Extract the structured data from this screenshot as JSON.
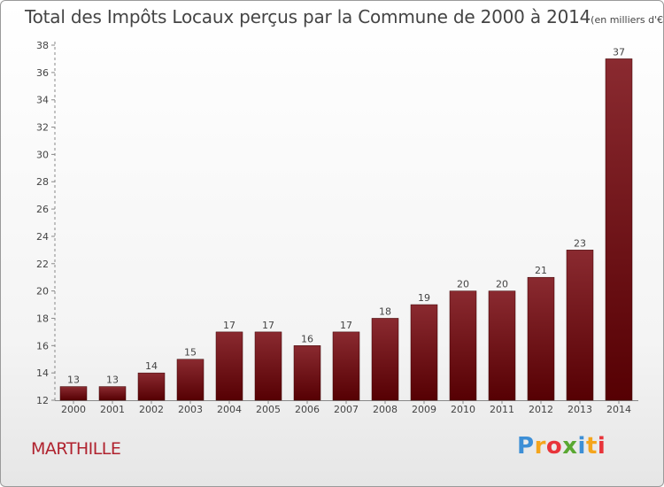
{
  "chart_data": {
    "type": "bar",
    "title": "Total des Impôts Locaux perçus par la Commune de 2000 à 2014",
    "unit_label": "(en milliers d'€)",
    "categories": [
      "2000",
      "2001",
      "2002",
      "2003",
      "2004",
      "2005",
      "2006",
      "2007",
      "2008",
      "2009",
      "2010",
      "2011",
      "2012",
      "2013",
      "2014"
    ],
    "values": [
      13,
      13,
      14,
      15,
      17,
      17,
      16,
      17,
      18,
      19,
      20,
      20,
      21,
      23,
      37
    ],
    "ylim": [
      12,
      38
    ],
    "yticks": [
      12,
      14,
      16,
      18,
      20,
      22,
      24,
      26,
      28,
      30,
      32,
      34,
      36,
      38
    ],
    "xlabel": "",
    "ylabel": "",
    "grid": false,
    "bar_color": "#6e0f12"
  },
  "commune": "MARTHILLE",
  "logo": {
    "text": "Proxiti",
    "colors": [
      "#3d8fd6",
      "#f4a51c",
      "#e8343a",
      "#5aa832",
      "#3d8fd6",
      "#f4a51c",
      "#e8343a"
    ]
  }
}
